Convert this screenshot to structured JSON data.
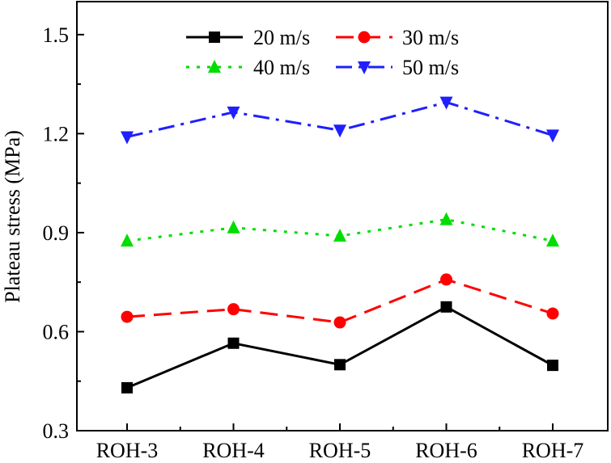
{
  "chart_data": {
    "type": "line",
    "title": "",
    "xlabel": "",
    "ylabel": "Plateau stress (MPa)",
    "categories": [
      "ROH-3",
      "ROH-4",
      "ROH-5",
      "ROH-6",
      "ROH-7"
    ],
    "ylim": [
      0.3,
      1.6
    ],
    "yticks": [
      0.3,
      0.6,
      0.9,
      1.2,
      1.5
    ],
    "ytick_labels": [
      "0.3",
      "0.6",
      "0.9",
      "1.2",
      "1.5"
    ],
    "grid": false,
    "legend_position": "top-center",
    "series": [
      {
        "name": "20 m/s",
        "color": "#000000",
        "marker": "square",
        "line": "solid",
        "values": [
          0.43,
          0.565,
          0.5,
          0.675,
          0.498
        ]
      },
      {
        "name": "30 m/s",
        "color": "#ff0000",
        "marker": "circle",
        "line": "dashed",
        "values": [
          0.645,
          0.668,
          0.628,
          0.758,
          0.655
        ]
      },
      {
        "name": "40 m/s",
        "color": "#00dd00",
        "marker": "triangle-up",
        "line": "dotted",
        "values": [
          0.875,
          0.915,
          0.89,
          0.94,
          0.875
        ]
      },
      {
        "name": "50 m/s",
        "color": "#1f1fff",
        "marker": "triangle-down",
        "line": "dash-dot",
        "values": [
          1.19,
          1.265,
          1.21,
          1.295,
          1.195
        ]
      }
    ]
  }
}
